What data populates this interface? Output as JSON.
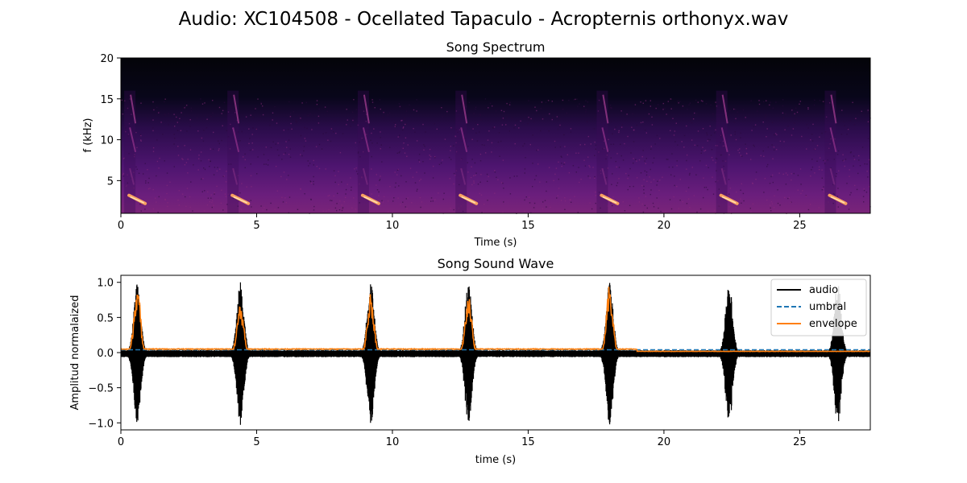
{
  "figure_title": "Audio: XC104508 - Ocellated Tapaculo - Acropternis orthonyx.wav",
  "colors": {
    "background": "#ffffff",
    "spec_dark": "#050510",
    "spec_purple": "#5a1a7a",
    "spec_hot": "#f8a060",
    "audio": "#000000",
    "umbral": "#1f77b4",
    "envelope": "#ff7f0e"
  },
  "chart_data": [
    {
      "type": "heatmap",
      "title": "Song Spectrum",
      "xlabel": "Time (s)",
      "ylabel": "f (kHz)",
      "xlim": [
        0,
        27.6
      ],
      "ylim": [
        1,
        20
      ],
      "xticks": [
        0,
        5,
        10,
        15,
        20,
        25
      ],
      "yticks": [
        5,
        10,
        15,
        20
      ],
      "call_onsets_s": [
        0.3,
        4.1,
        8.9,
        12.5,
        17.7,
        22.1,
        26.1
      ],
      "colormap": "magma"
    },
    {
      "type": "line",
      "title": "Song Sound Wave",
      "xlabel": "time (s)",
      "ylabel": "Amplitud normalaized",
      "xlim": [
        0,
        27.6
      ],
      "ylim": [
        -1.1,
        1.1
      ],
      "xticks": [
        0,
        5,
        10,
        15,
        20,
        25
      ],
      "yticks": [
        -1.0,
        -0.5,
        0.0,
        0.5,
        1.0
      ],
      "legend_position": "top-right",
      "series": [
        {
          "name": "audio",
          "style": "solid"
        },
        {
          "name": "umbral",
          "style": "dashed",
          "value": 0.04
        },
        {
          "name": "envelope",
          "style": "solid"
        }
      ],
      "bursts": [
        {
          "t": 0.3,
          "peak_pos": 1.0,
          "peak_neg": -1.0,
          "env_peak": 1.0
        },
        {
          "t": 4.1,
          "peak_pos": 0.65,
          "peak_neg": -0.72,
          "env_peak": 0.73
        },
        {
          "t": 8.9,
          "peak_pos": 0.82,
          "peak_neg": -0.85,
          "env_peak": 0.87
        },
        {
          "t": 12.5,
          "peak_pos": 0.79,
          "peak_neg": -0.84,
          "env_peak": 0.85
        },
        {
          "t": 17.7,
          "peak_pos": 0.97,
          "peak_neg": -0.93,
          "env_peak": 0.97
        },
        {
          "t": 22.1,
          "peak_pos": 0.81,
          "peak_neg": -0.69,
          "env_peak": 0.0
        },
        {
          "t": 26.1,
          "peak_pos": 0.53,
          "peak_neg": -0.87,
          "env_peak": 0.0
        }
      ],
      "envelope_end_s": 19.0
    }
  ]
}
